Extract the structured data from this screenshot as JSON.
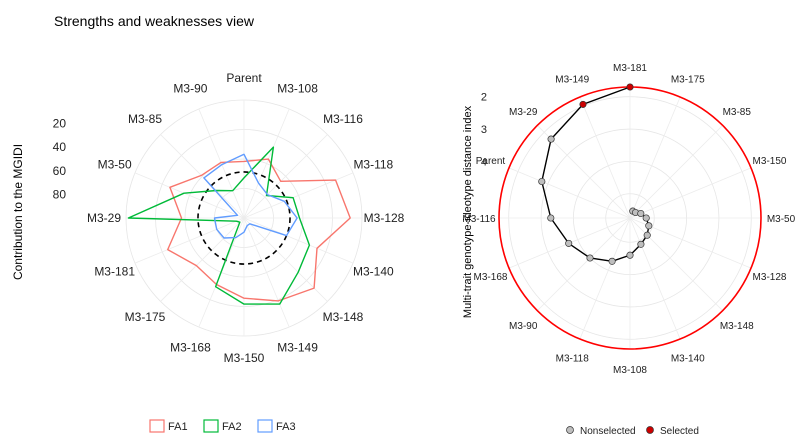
{
  "title": "Strengths and weaknesses view",
  "chart_data": [
    {
      "type": "radar",
      "ylabel": "Contribution to the MGIDI",
      "radial_ticks": [
        "20",
        "40",
        "60",
        "80"
      ],
      "radial_tick_values": [
        20,
        40,
        60,
        80
      ],
      "axis_note": "higher contribution plotted toward the center; ticks read 20 at the outer edge to 80 near the center",
      "categories": [
        "Parent",
        "M3-108",
        "M3-116",
        "M3-118",
        "M3-128",
        "M3-140",
        "M3-148",
        "M3-149",
        "M3-150",
        "M3-168",
        "M3-175",
        "M3-181",
        "M3-29",
        "M3-50",
        "M3-85",
        "M3-90"
      ],
      "series": [
        {
          "name": "FA1",
          "color": "#F8766D",
          "values": [
            52,
            46,
            56,
            16,
            10,
            33,
            16,
            24,
            32,
            39,
            43,
            30,
            47,
            32,
            49,
            49
          ]
        },
        {
          "name": "FA2",
          "color": "#00BA38",
          "values": [
            66,
            35,
            73,
            55,
            53,
            40,
            35,
            21,
            27,
            37,
            95,
            93,
            2,
            45,
            67,
            75
          ]
        },
        {
          "name": "FA3",
          "color": "#619CFF",
          "values": [
            46,
            68,
            72,
            63,
            55,
            61,
            93,
            93,
            88,
            82,
            76,
            75,
            75,
            94,
            52,
            51
          ]
        }
      ],
      "reference_circle": {
        "style": "dashed",
        "color": "#000000",
        "value": 61
      },
      "legend": {
        "position": "bottom",
        "entries": [
          "FA1",
          "FA2",
          "FA3"
        ]
      }
    },
    {
      "type": "polar-scatter",
      "ylabel": "Multi-trait genotype-ideotype distance index",
      "radial_ticks": [
        "2",
        "3",
        "4"
      ],
      "radial_tick_values": [
        2,
        3,
        4
      ],
      "categories": [
        "M3-181",
        "M3-175",
        "M3-85",
        "M3-150",
        "M3-50",
        "M3-128",
        "M3-148",
        "M3-140",
        "M3-108",
        "M3-118",
        "M3-90",
        "M3-168",
        "M3-116",
        "Parent",
        "M3-29",
        "M3-149"
      ],
      "points": [
        {
          "label": "M3-181",
          "value": 1.7,
          "selected": true
        },
        {
          "label": "M3-175",
          "value": 5.52,
          "selected": false
        },
        {
          "label": "M3-85",
          "value": 5.51,
          "selected": false
        },
        {
          "label": "M3-150",
          "value": 5.39,
          "selected": false
        },
        {
          "label": "M3-50",
          "value": 5.25,
          "selected": false
        },
        {
          "label": "M3-128",
          "value": 5.12,
          "selected": false
        },
        {
          "label": "M3-148",
          "value": 5.0,
          "selected": false
        },
        {
          "label": "M3-140",
          "value": 4.87,
          "selected": false
        },
        {
          "label": "M3-108",
          "value": 4.6,
          "selected": false
        },
        {
          "label": "M3-118",
          "value": 4.3,
          "selected": false
        },
        {
          "label": "M3-90",
          "value": 4.0,
          "selected": false
        },
        {
          "label": "M3-168",
          "value": 3.7,
          "selected": false
        },
        {
          "label": "M3-116",
          "value": 3.3,
          "selected": false
        },
        {
          "label": "Parent",
          "value": 2.8,
          "selected": false
        },
        {
          "label": "M3-29",
          "value": 2.3,
          "selected": false
        },
        {
          "label": "M3-149",
          "value": 1.95,
          "selected": true
        }
      ],
      "cutpoint_circle": {
        "color": "#FF0000",
        "value": 1.7
      },
      "legend": {
        "position": "bottom",
        "entries": [
          "Nonselected",
          "Selected"
        ],
        "colors": [
          "#BEBEBE",
          "#CC0000"
        ]
      }
    }
  ]
}
